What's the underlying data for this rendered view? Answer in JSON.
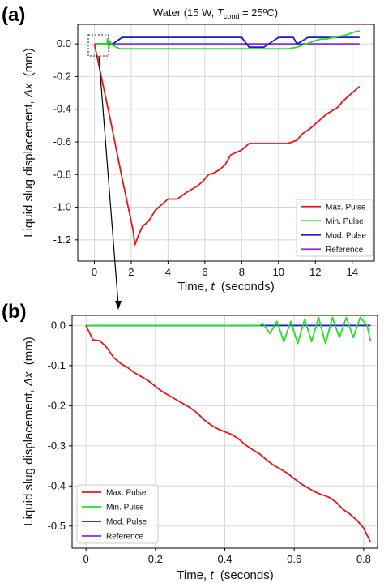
{
  "chart_data": [
    {
      "panel": "(a)",
      "type": "line",
      "title_prefix": "Water (15 W, ",
      "title_var": "T",
      "title_sub": "cond",
      "title_suffix": " = 25ºC)",
      "xlabel_text": "Time, ",
      "xlabel_var": "t",
      "xlabel_units": "  (seconds)",
      "ylabel_text": "Liquid slug displacement, ",
      "ylabel_var": "Δx",
      "ylabel_units": "  (mm)",
      "xlim": [
        -0.9,
        15.2
      ],
      "ylim": [
        -1.33,
        0.12
      ],
      "xticks": [
        0,
        2,
        4,
        6,
        8,
        10,
        12,
        14
      ],
      "xtick_labels": [
        "0",
        "2",
        "4",
        "6",
        "8",
        "10",
        "12",
        "14"
      ],
      "yticks": [
        0.0,
        -0.2,
        -0.4,
        -0.6,
        -0.8,
        -1.0,
        -1.2
      ],
      "ytick_labels": [
        "0.0",
        "-0.2",
        "-0.4",
        "-0.6",
        "-0.8",
        "-1.0",
        "-1.2"
      ],
      "grid": true,
      "legend_position": "bottom-right",
      "series": [
        {
          "name": "Max. Pulse",
          "color": "#e8161b",
          "x": [
            0.0,
            0.3,
            0.6,
            0.9,
            1.2,
            1.5,
            1.8,
            2.1,
            2.2,
            2.4,
            2.6,
            2.9,
            3.1,
            3.3,
            3.6,
            4.0,
            4.5,
            5.0,
            5.6,
            5.9,
            6.2,
            6.5,
            6.8,
            7.1,
            7.4,
            8.0,
            8.4,
            9.0,
            10.0,
            10.5,
            11.0,
            11.3,
            11.7,
            12.0,
            12.3,
            12.6,
            12.9,
            13.2,
            13.5,
            13.8,
            14.1,
            14.4
          ],
          "y": [
            0.0,
            -0.16,
            -0.32,
            -0.48,
            -0.65,
            -0.82,
            -0.98,
            -1.14,
            -1.23,
            -1.17,
            -1.12,
            -1.09,
            -1.06,
            -1.02,
            -0.99,
            -0.95,
            -0.95,
            -0.91,
            -0.87,
            -0.84,
            -0.8,
            -0.79,
            -0.77,
            -0.74,
            -0.68,
            -0.65,
            -0.61,
            -0.61,
            -0.61,
            -0.61,
            -0.59,
            -0.55,
            -0.52,
            -0.49,
            -0.46,
            -0.43,
            -0.41,
            -0.39,
            -0.35,
            -0.32,
            -0.29,
            -0.26
          ]
        },
        {
          "name": "Min. Pulse",
          "color": "#22e022",
          "x": [
            0.0,
            0.7,
            0.7,
            0.8,
            0.8,
            1.0,
            1.4,
            1.9,
            2.4,
            4.0,
            6.0,
            8.0,
            9.0,
            10.5,
            11.0,
            11.5,
            12.0,
            12.3,
            12.6,
            13.0,
            13.5,
            13.8,
            14.0,
            14.4
          ],
          "y": [
            0.0,
            0.0,
            0.03,
            -0.03,
            0.02,
            -0.01,
            -0.03,
            -0.03,
            -0.03,
            -0.03,
            -0.03,
            -0.03,
            -0.03,
            -0.03,
            -0.02,
            0.0,
            0.02,
            0.03,
            0.03,
            0.04,
            0.05,
            0.06,
            0.07,
            0.08
          ]
        },
        {
          "name": "Mod. Pulse",
          "color": "#1a1acc",
          "x": [
            0.0,
            0.5,
            1.0,
            1.5,
            2.0,
            3.0,
            4.0,
            5.0,
            6.0,
            7.0,
            8.0,
            8.4,
            8.7,
            9.2,
            10.0,
            10.8,
            11.0,
            11.6,
            12.2,
            13.0,
            14.0,
            14.4
          ],
          "y": [
            0.0,
            0.0,
            0.0,
            0.04,
            0.04,
            0.04,
            0.04,
            0.04,
            0.04,
            0.04,
            0.04,
            -0.02,
            -0.02,
            -0.02,
            0.04,
            0.04,
            0.0,
            0.04,
            0.04,
            0.04,
            0.04,
            0.04
          ]
        },
        {
          "name": "Reference",
          "color": "#8a2be2",
          "x": [
            0.0,
            14.4
          ],
          "y": [
            0.0,
            0.0
          ]
        }
      ]
    },
    {
      "panel": "(b)",
      "type": "line",
      "xlabel_text": "Time, ",
      "xlabel_var": "t",
      "xlabel_units": "  (seconds)",
      "ylabel_text": "Liquid slug displacement, ",
      "ylabel_var": "Δx",
      "ylabel_units": "  (mm)",
      "xlim": [
        -0.04,
        0.84
      ],
      "ylim": [
        -0.555,
        0.025
      ],
      "xticks": [
        0.0,
        0.2,
        0.4,
        0.6,
        0.8
      ],
      "xtick_labels": [
        "0",
        "0.2",
        "0.4",
        "0.6",
        "0.8"
      ],
      "yticks": [
        0.0,
        -0.1,
        -0.2,
        -0.3,
        -0.4,
        -0.5
      ],
      "ytick_labels": [
        "0.0",
        "-0.1",
        "-0.2",
        "-0.3",
        "-0.4",
        "-0.5"
      ],
      "grid": true,
      "legend_position": "bottom-left",
      "series": [
        {
          "name": "Max. Pulse",
          "color": "#e8161b",
          "x": [
            0.0,
            0.02,
            0.04,
            0.06,
            0.08,
            0.1,
            0.12,
            0.14,
            0.16,
            0.18,
            0.2,
            0.22,
            0.24,
            0.26,
            0.28,
            0.3,
            0.32,
            0.34,
            0.36,
            0.38,
            0.4,
            0.42,
            0.44,
            0.46,
            0.48,
            0.5,
            0.52,
            0.54,
            0.56,
            0.58,
            0.6,
            0.62,
            0.64,
            0.66,
            0.68,
            0.7,
            0.72,
            0.74,
            0.76,
            0.78,
            0.8,
            0.82
          ],
          "y": [
            0.0,
            -0.036,
            -0.038,
            -0.055,
            -0.08,
            -0.095,
            -0.105,
            -0.118,
            -0.128,
            -0.138,
            -0.152,
            -0.165,
            -0.175,
            -0.185,
            -0.195,
            -0.205,
            -0.218,
            -0.235,
            -0.248,
            -0.258,
            -0.265,
            -0.272,
            -0.283,
            -0.298,
            -0.31,
            -0.32,
            -0.335,
            -0.348,
            -0.358,
            -0.368,
            -0.382,
            -0.395,
            -0.405,
            -0.415,
            -0.422,
            -0.428,
            -0.44,
            -0.458,
            -0.47,
            -0.485,
            -0.505,
            -0.54
          ]
        },
        {
          "name": "Min. Pulse",
          "color": "#22e022",
          "x": [
            0.0,
            0.5,
            0.51,
            0.53,
            0.55,
            0.57,
            0.59,
            0.61,
            0.63,
            0.65,
            0.67,
            0.69,
            0.71,
            0.73,
            0.75,
            0.77,
            0.79,
            0.81,
            0.82
          ],
          "y": [
            0.0,
            0.0,
            0.005,
            -0.02,
            0.01,
            -0.04,
            0.01,
            -0.045,
            0.015,
            -0.04,
            0.02,
            -0.045,
            0.02,
            -0.03,
            0.02,
            -0.03,
            0.02,
            0.0,
            -0.04
          ]
        },
        {
          "name": "Mod. Pulse",
          "color": "#1a1acc",
          "x": [
            0.0,
            0.82
          ],
          "y": [
            0.0,
            0.0
          ]
        },
        {
          "name": "Reference",
          "color": "#8a2be2",
          "x": [
            0.0,
            0.82
          ],
          "y": [
            0.0,
            0.0
          ]
        }
      ]
    }
  ]
}
